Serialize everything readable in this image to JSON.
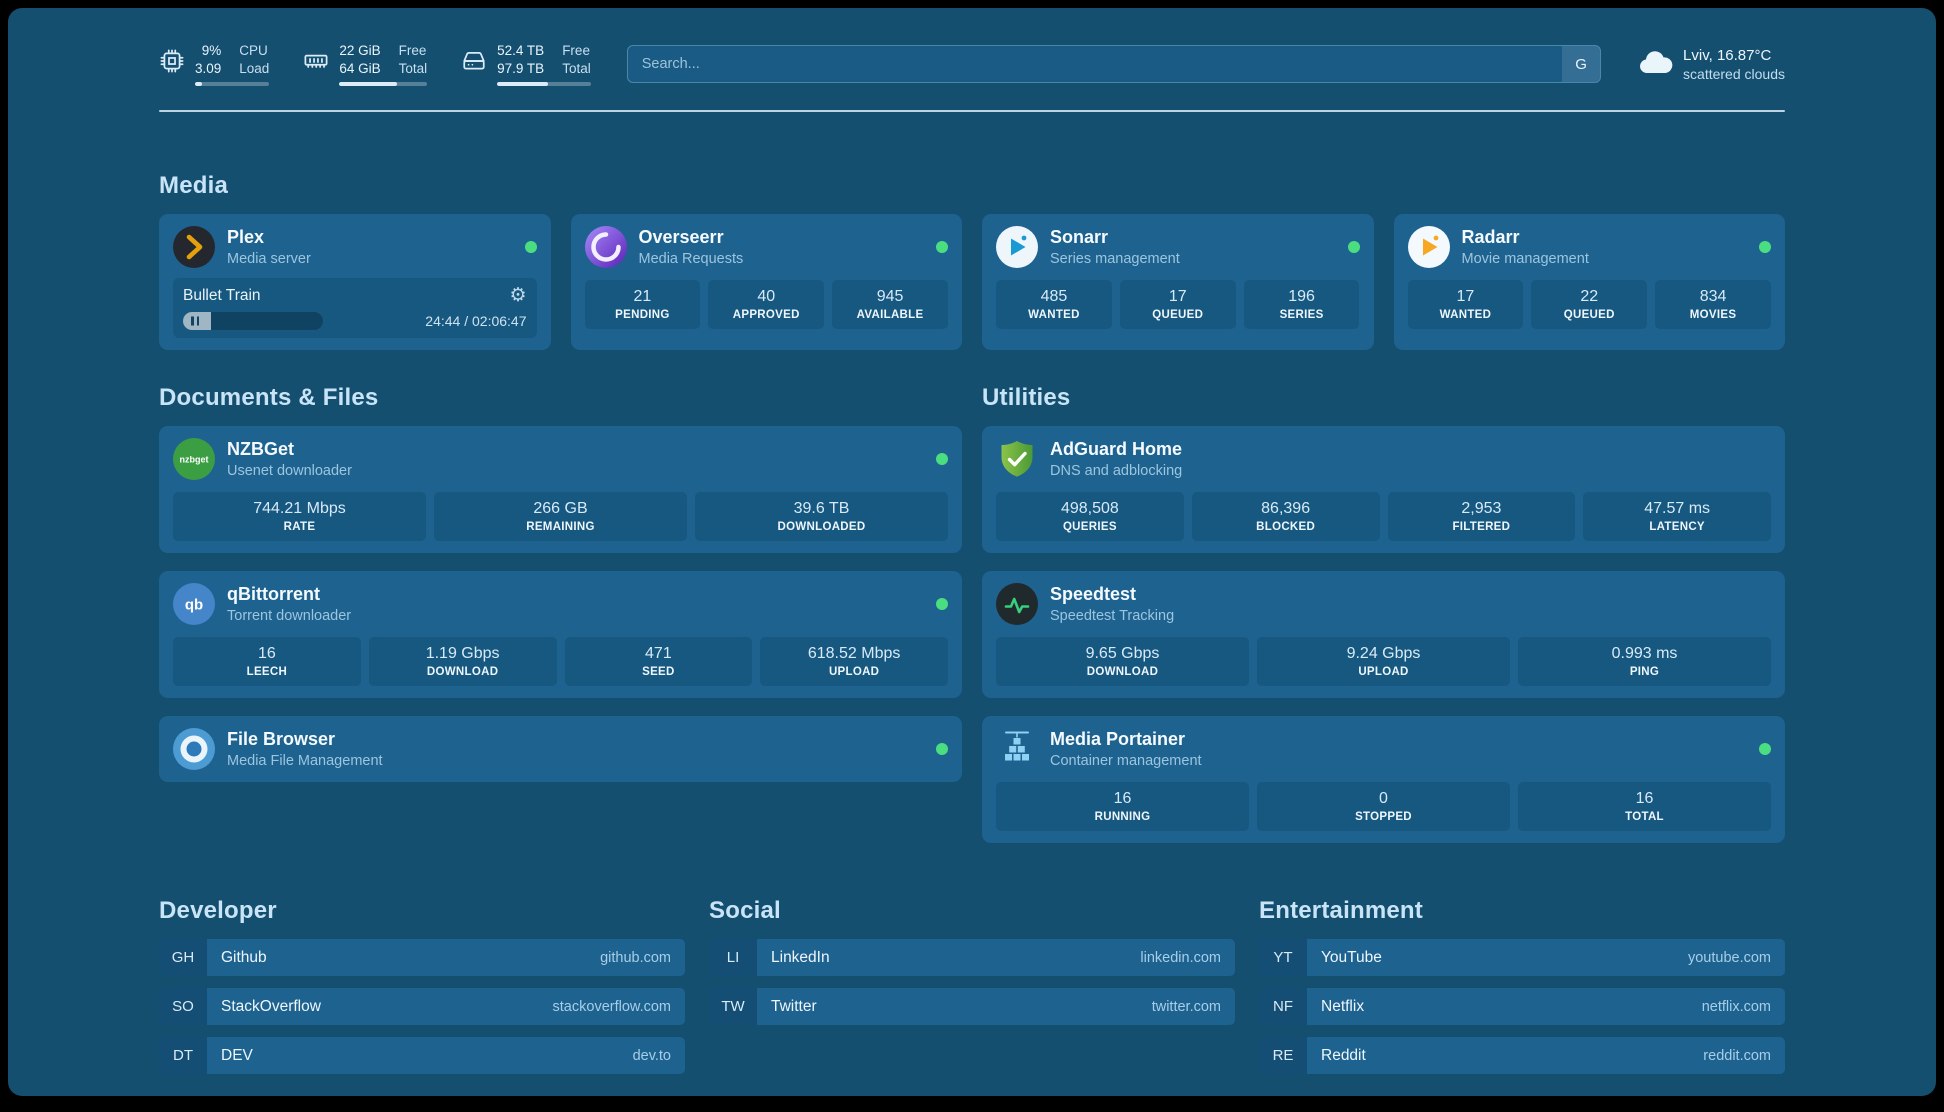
{
  "theme": {
    "status_green": "#4ade80",
    "page_background": "#144f70",
    "card_background": "#1e6290",
    "tile_background": "#175880",
    "plex_amber": "#e5a00d",
    "sonarr_blue": "#1b9ad2",
    "radarr_orange": "#f7a823",
    "overseerr_purple": "#5b21b6",
    "adguard_green": "#67b32e",
    "speedtest_green": "#36d07e",
    "portainer_blue": "#8fd1f2"
  },
  "topbar": {
    "widgets": [
      {
        "icon": "cpu-icon",
        "rows": [
          {
            "value": "9%",
            "label": "CPU"
          },
          {
            "value": "3.09",
            "label": "Load"
          }
        ],
        "progress": 9
      },
      {
        "icon": "memory-icon",
        "rows": [
          {
            "value": "22 GiB",
            "label": "Free"
          },
          {
            "value": "64 GiB",
            "label": "Total"
          }
        ],
        "progress": 66
      },
      {
        "icon": "disk-icon",
        "rows": [
          {
            "value": "52.4 TB",
            "label": "Free"
          },
          {
            "value": "97.9 TB",
            "label": "Total"
          }
        ],
        "progress": 54
      }
    ],
    "search": {
      "placeholder": "Search...",
      "provider_label": "G"
    },
    "weather": {
      "location": "Lviv, 16.87°C",
      "condition": "scattered clouds"
    }
  },
  "sections": {
    "media": {
      "heading": "Media",
      "plex": {
        "title": "Plex",
        "subtitle": "Media server",
        "now_playing": {
          "title": "Bullet Train",
          "time": "24:44 / 02:06:47",
          "progress": 20
        }
      },
      "overseerr": {
        "title": "Overseerr",
        "subtitle": "Media Requests",
        "stats": [
          {
            "value": "21",
            "label": "PENDING"
          },
          {
            "value": "40",
            "label": "APPROVED"
          },
          {
            "value": "945",
            "label": "AVAILABLE"
          }
        ]
      },
      "sonarr": {
        "title": "Sonarr",
        "subtitle": "Series management",
        "stats": [
          {
            "value": "485",
            "label": "WANTED"
          },
          {
            "value": "17",
            "label": "QUEUED"
          },
          {
            "value": "196",
            "label": "SERIES"
          }
        ]
      },
      "radarr": {
        "title": "Radarr",
        "subtitle": "Movie management",
        "stats": [
          {
            "value": "17",
            "label": "WANTED"
          },
          {
            "value": "22",
            "label": "QUEUED"
          },
          {
            "value": "834",
            "label": "MOVIES"
          }
        ]
      }
    },
    "documents": {
      "heading": "Documents & Files",
      "nzbget": {
        "title": "NZBGet",
        "subtitle": "Usenet downloader",
        "stats": [
          {
            "value": "744.21 Mbps",
            "label": "RATE"
          },
          {
            "value": "266 GB",
            "label": "REMAINING"
          },
          {
            "value": "39.6 TB",
            "label": "DOWNLOADED"
          }
        ]
      },
      "qbittorrent": {
        "title": "qBittorrent",
        "subtitle": "Torrent downloader",
        "stats": [
          {
            "value": "16",
            "label": "LEECH"
          },
          {
            "value": "1.19 Gbps",
            "label": "DOWNLOAD"
          },
          {
            "value": "471",
            "label": "SEED"
          },
          {
            "value": "618.52 Mbps",
            "label": "UPLOAD"
          }
        ]
      },
      "filebrowser": {
        "title": "File Browser",
        "subtitle": "Media File Management"
      }
    },
    "utilities": {
      "heading": "Utilities",
      "adguard": {
        "title": "AdGuard Home",
        "subtitle": "DNS and adblocking",
        "stats": [
          {
            "value": "498,508",
            "label": "QUERIES"
          },
          {
            "value": "86,396",
            "label": "BLOCKED"
          },
          {
            "value": "2,953",
            "label": "FILTERED"
          },
          {
            "value": "47.57 ms",
            "label": "LATENCY"
          }
        ]
      },
      "speedtest": {
        "title": "Speedtest",
        "subtitle": "Speedtest Tracking",
        "stats": [
          {
            "value": "9.65 Gbps",
            "label": "DOWNLOAD"
          },
          {
            "value": "9.24 Gbps",
            "label": "UPLOAD"
          },
          {
            "value": "0.993 ms",
            "label": "PING"
          }
        ]
      },
      "portainer": {
        "title": "Media Portainer",
        "subtitle": "Container management",
        "stats": [
          {
            "value": "16",
            "label": "RUNNING"
          },
          {
            "value": "0",
            "label": "STOPPED"
          },
          {
            "value": "16",
            "label": "TOTAL"
          }
        ]
      }
    }
  },
  "bookmarks": [
    {
      "heading": "Developer",
      "items": [
        {
          "abbr": "GH",
          "name": "Github",
          "domain": "github.com"
        },
        {
          "abbr": "SO",
          "name": "StackOverflow",
          "domain": "stackoverflow.com"
        },
        {
          "abbr": "DT",
          "name": "DEV",
          "domain": "dev.to"
        }
      ]
    },
    {
      "heading": "Social",
      "items": [
        {
          "abbr": "LI",
          "name": "LinkedIn",
          "domain": "linkedin.com"
        },
        {
          "abbr": "TW",
          "name": "Twitter",
          "domain": "twitter.com"
        }
      ]
    },
    {
      "heading": "Entertainment",
      "items": [
        {
          "abbr": "YT",
          "name": "YouTube",
          "domain": "youtube.com"
        },
        {
          "abbr": "NF",
          "name": "Netflix",
          "domain": "netflix.com"
        },
        {
          "abbr": "RE",
          "name": "Reddit",
          "domain": "reddit.com"
        }
      ]
    }
  ],
  "icons": {
    "nzbget": "nzbget",
    "qbittorrent": "qb"
  }
}
